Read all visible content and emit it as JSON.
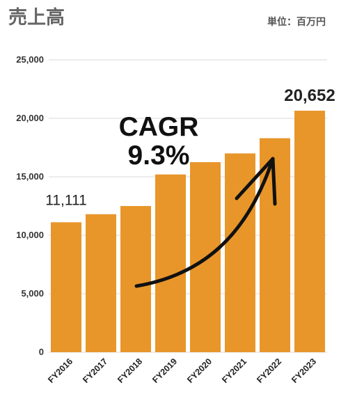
{
  "chart_data": {
    "type": "bar",
    "title": "売上高",
    "unit_label": "単位：百万円",
    "categories": [
      "FY2016",
      "FY2017",
      "FY2018",
      "FY2019",
      "FY2020",
      "FY2021",
      "FY2022",
      "FY2023"
    ],
    "values": [
      11111,
      11800,
      12500,
      15200,
      16250,
      17000,
      18300,
      20652
    ],
    "data_labels": {
      "FY2016": "11,111",
      "FY2023": "20,652"
    },
    "ylim": [
      0,
      25000
    ],
    "yticks": [
      "0",
      "5,000",
      "10,000",
      "15,000",
      "20,000",
      "25,000"
    ],
    "ytick_values": [
      0,
      5000,
      10000,
      15000,
      20000,
      25000
    ],
    "grid": true,
    "bar_color": "#E8962A",
    "annotation": {
      "line1": "CAGR",
      "line2": "9.3%",
      "arrow_color": "#111111"
    }
  }
}
